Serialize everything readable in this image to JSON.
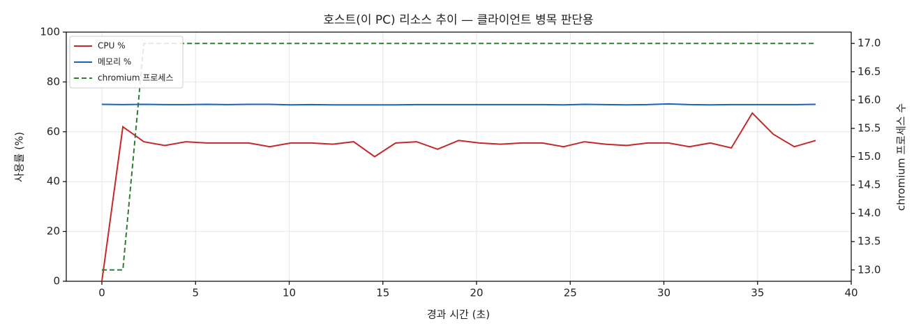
{
  "chart_data": {
    "type": "line",
    "title": "호스트(이 PC) 리소스 추이 — 클라이언트 병목 판단용",
    "x_label": "경과 시간 (초)",
    "y_label": "사용률 (%)",
    "y2_label": "chromium 프로세스 수",
    "x": [
      0,
      1.12,
      2.24,
      3.36,
      4.48,
      5.6,
      6.72,
      7.84,
      8.96,
      10.08,
      11.2,
      12.32,
      13.44,
      14.56,
      15.68,
      16.8,
      17.92,
      19.04,
      20.16,
      21.28,
      22.4,
      23.52,
      24.64,
      25.76,
      26.88,
      28,
      29.12,
      30.24,
      31.36,
      32.48,
      33.6,
      34.72,
      35.84,
      36.96,
      38.1
    ],
    "series": [
      {
        "name": "CPU %",
        "color": "#c62828",
        "dash": false,
        "values": [
          0,
          62,
          56,
          54.5,
          56,
          55.5,
          55.5,
          55.5,
          54,
          55.5,
          55.5,
          55,
          56,
          50,
          55.5,
          56,
          53,
          56.5,
          55.5,
          55,
          55.5,
          55.5,
          54,
          56,
          55,
          54.5,
          55.5,
          55.5,
          54,
          55.5,
          53.5,
          67.5,
          59,
          54,
          56.5
        ]
      },
      {
        "name": "메모리 %",
        "color": "#1565c0",
        "dash": false,
        "values": [
          71,
          70.9,
          71,
          70.9,
          70.9,
          71,
          70.9,
          71,
          71,
          70.8,
          70.9,
          70.8,
          70.8,
          70.8,
          70.8,
          70.9,
          70.9,
          70.9,
          70.9,
          70.9,
          70.9,
          70.9,
          70.8,
          71,
          70.9,
          70.8,
          70.9,
          71.2,
          70.9,
          70.8,
          70.9,
          70.9,
          70.9,
          70.9,
          71
        ]
      },
      {
        "name": "chromium 프로세스",
        "color": "#2e7d32",
        "dash": true,
        "axis": "y2",
        "values": [
          13,
          13,
          17,
          17,
          17,
          17,
          17,
          17,
          17,
          17,
          17,
          17,
          17,
          17,
          17,
          17,
          17,
          17,
          17,
          17,
          17,
          17,
          17,
          17,
          17,
          17,
          17,
          17,
          17,
          17,
          17,
          17,
          17,
          17,
          17
        ]
      }
    ],
    "xlim": [
      -1.9,
      40
    ],
    "xticks": [
      0,
      5,
      10,
      15,
      20,
      25,
      30,
      35,
      40
    ],
    "ylim": [
      0,
      100
    ],
    "yticks": [
      0,
      20,
      40,
      60,
      80,
      100
    ],
    "y2lim": [
      12.8,
      17.2
    ],
    "y2ticks": [
      {
        "value": 13,
        "label": "13.0"
      },
      {
        "value": 13.5,
        "label": "13.5"
      },
      {
        "value": 14,
        "label": "14.0"
      },
      {
        "value": 14.5,
        "label": "14.5"
      },
      {
        "value": 15,
        "label": "15.0"
      },
      {
        "value": 15.5,
        "label": "15.5"
      },
      {
        "value": 16,
        "label": "16.0"
      },
      {
        "value": 16.5,
        "label": "16.5"
      },
      {
        "value": 17,
        "label": "17.0"
      }
    ],
    "grid": true,
    "legend": "upper-left"
  }
}
